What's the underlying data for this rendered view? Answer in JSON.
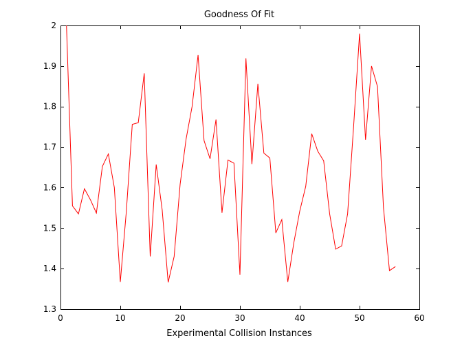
{
  "chart_data": {
    "type": "line",
    "title": "Goodness Of Fit",
    "xlabel": "Experimental Collision Instances",
    "ylabel": "",
    "xlim": [
      0,
      60
    ],
    "ylim": [
      1.3,
      2.0
    ],
    "xticks": [
      0,
      10,
      20,
      30,
      40,
      50,
      60
    ],
    "yticks": [
      1.3,
      1.4,
      1.5,
      1.6,
      1.7,
      1.8,
      1.9,
      2.0
    ],
    "xtick_labels": [
      "0",
      "10",
      "20",
      "30",
      "40",
      "50",
      "60"
    ],
    "ytick_labels": [
      "1.3",
      "1.4",
      "1.5",
      "1.6",
      "1.7",
      "1.8",
      "1.9",
      "2"
    ],
    "grid": false,
    "series": [
      {
        "color": "#ff0000",
        "x": [
          1,
          2,
          3,
          4,
          5,
          6,
          7,
          8,
          9,
          10,
          11,
          12,
          13,
          14,
          15,
          16,
          17,
          18,
          19,
          20,
          21,
          22,
          23,
          24,
          25,
          26,
          27,
          28,
          29,
          30,
          31,
          32,
          33,
          34,
          35,
          36,
          37,
          38,
          39,
          40,
          41,
          42,
          43,
          44,
          45,
          46,
          47,
          48,
          49,
          50,
          51,
          52,
          53,
          54,
          55,
          56
        ],
        "y": [
          2.0,
          1.555,
          1.535,
          1.597,
          1.57,
          1.537,
          1.652,
          1.683,
          1.6,
          1.367,
          1.54,
          1.756,
          1.76,
          1.882,
          1.43,
          1.657,
          1.545,
          1.366,
          1.43,
          1.608,
          1.72,
          1.8,
          1.927,
          1.716,
          1.671,
          1.768,
          1.538,
          1.668,
          1.66,
          1.385,
          1.919,
          1.658,
          1.856,
          1.685,
          1.673,
          1.488,
          1.521,
          1.367,
          1.463,
          1.542,
          1.603,
          1.733,
          1.69,
          1.666,
          1.535,
          1.448,
          1.456,
          1.535,
          1.75,
          1.98,
          1.718,
          1.9,
          1.849,
          1.55,
          1.395,
          1.405
        ]
      }
    ]
  }
}
